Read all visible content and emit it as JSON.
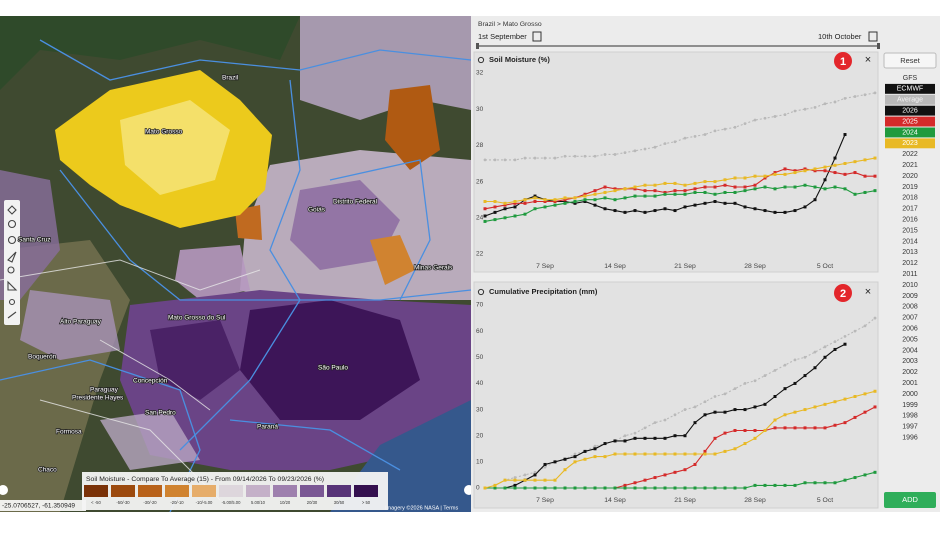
{
  "breadcrumb": "Brazil > Mato Grosso",
  "date_range": {
    "start": "1st September",
    "end": "10th October"
  },
  "buttons": {
    "reset": "Reset",
    "add": "ADD"
  },
  "badges": [
    "1",
    "2"
  ],
  "close": "×",
  "data_sources": [
    "GFS",
    "ECMWF"
  ],
  "other_years": [
    "2022",
    "2021",
    "2020",
    "2019",
    "2018",
    "2017",
    "2016",
    "2015",
    "2014",
    "2013",
    "2012",
    "2011",
    "2010",
    "2009",
    "2008",
    "2007",
    "2006",
    "2005",
    "2004",
    "2003",
    "2002",
    "2001",
    "2000",
    "1999",
    "1998",
    "1997",
    "1996"
  ],
  "map": {
    "labels": [
      "Brazil",
      "Mato Grosso",
      "Goiás",
      "Distrito Federal",
      "Minas Gerais",
      "Mato Grosso do Sul",
      "São Paulo",
      "Paraná",
      "Paraguay",
      "Alto Paraguay",
      "Boquerón",
      "Presidente Hayes",
      "Concepción",
      "San Pedro",
      "Formosa",
      "Chaco",
      "Santa Cruz"
    ],
    "coordinates": "-25.0706527, -61.350949",
    "attribution": "Imagery ©2026 NASA | Terms",
    "legend": {
      "title": "Soil Moisture - Compare To Average (15) - From 09/14/2026 To 09/23/2026 (%)",
      "labels": [
        "< -50",
        "-50/-30",
        "-30/-20",
        "-20/-10",
        "-10/-5.00",
        "-5.00/5.00",
        "5.00/10",
        "10/20",
        "20/30",
        "30/50",
        "> 50"
      ],
      "colors": [
        "#7a3208",
        "#9c4a0e",
        "#b8621a",
        "#d08330",
        "#e6ad6a",
        "#ddd6dc",
        "#c4b0c8",
        "#9e80ae",
        "#7a5894",
        "#583478",
        "#34104f"
      ]
    }
  },
  "chart_data": [
    {
      "type": "line",
      "title": "Soil Moisture (%)",
      "categories": [
        null,
        null,
        null,
        null,
        null,
        null,
        "7 Sep",
        null,
        null,
        null,
        null,
        null,
        null,
        "14 Sep",
        null,
        null,
        null,
        null,
        null,
        null,
        "21 Sep",
        null,
        null,
        null,
        null,
        null,
        null,
        "28 Sep",
        null,
        null,
        null,
        null,
        null,
        null,
        "5 Oct",
        null,
        null,
        null,
        null,
        null
      ],
      "ylim": [
        22,
        32
      ],
      "yticks": [
        22,
        24,
        26,
        28,
        30,
        32
      ],
      "grid": false,
      "series": [
        {
          "name": "Average",
          "color": "#b9b9b9",
          "dashed": true,
          "values": [
            27.2,
            27.2,
            27.2,
            27.2,
            27.3,
            27.3,
            27.3,
            27.3,
            27.4,
            27.4,
            27.4,
            27.4,
            27.5,
            27.5,
            27.6,
            27.7,
            27.8,
            27.9,
            28.1,
            28.2,
            28.4,
            28.5,
            28.6,
            28.8,
            28.9,
            29.0,
            29.2,
            29.4,
            29.5,
            29.6,
            29.7,
            29.9,
            30.0,
            30.1,
            30.3,
            30.4,
            30.6,
            30.7,
            30.8,
            30.9
          ]
        },
        {
          "name": "2026",
          "color": "#111111",
          "dashed": false,
          "values": [
            24.1,
            24.3,
            24.5,
            24.6,
            25.0,
            25.2,
            25.0,
            24.9,
            24.9,
            24.8,
            24.9,
            24.7,
            24.5,
            24.4,
            24.3,
            24.4,
            24.3,
            24.4,
            24.5,
            24.4,
            24.6,
            24.7,
            24.8,
            24.9,
            24.8,
            24.8,
            24.6,
            24.5,
            24.4,
            24.3,
            24.3,
            24.4,
            24.6,
            25.0,
            26.1,
            27.3,
            28.6,
            null,
            null,
            null
          ]
        },
        {
          "name": "2025",
          "color": "#d42a2a",
          "dashed": false,
          "values": [
            24.5,
            24.6,
            24.7,
            24.8,
            24.8,
            24.9,
            24.9,
            24.9,
            25.0,
            25.1,
            25.3,
            25.5,
            25.7,
            25.6,
            25.6,
            25.6,
            25.5,
            25.5,
            25.4,
            25.5,
            25.5,
            25.6,
            25.7,
            25.7,
            25.8,
            25.7,
            25.7,
            25.8,
            26.2,
            26.5,
            26.7,
            26.6,
            26.7,
            26.6,
            26.6,
            26.5,
            26.4,
            26.5,
            26.3,
            26.3
          ]
        },
        {
          "name": "2024",
          "color": "#1f9a3e",
          "dashed": false,
          "values": [
            23.8,
            23.9,
            24.0,
            24.1,
            24.2,
            24.5,
            24.6,
            24.7,
            24.8,
            24.9,
            25.0,
            25.0,
            25.1,
            25.0,
            25.1,
            25.2,
            25.2,
            25.2,
            25.3,
            25.3,
            25.3,
            25.4,
            25.4,
            25.3,
            25.4,
            25.4,
            25.5,
            25.6,
            25.7,
            25.6,
            25.7,
            25.7,
            25.8,
            25.7,
            25.6,
            25.7,
            25.6,
            25.3,
            25.4,
            25.5
          ]
        },
        {
          "name": "2023",
          "color": "#e8b925",
          "dashed": false,
          "values": [
            24.9,
            24.9,
            24.8,
            24.9,
            25.0,
            25.1,
            25.0,
            25.0,
            25.1,
            25.1,
            25.2,
            25.3,
            25.4,
            25.5,
            25.6,
            25.7,
            25.8,
            25.8,
            25.9,
            25.9,
            25.8,
            25.9,
            26.0,
            26.0,
            26.1,
            26.2,
            26.2,
            26.3,
            26.3,
            26.4,
            26.4,
            26.5,
            26.6,
            26.7,
            26.8,
            26.9,
            27.0,
            27.1,
            27.2,
            27.3
          ]
        }
      ]
    },
    {
      "type": "line",
      "title": "Cumulative Precipitation (mm)",
      "categories": [
        null,
        null,
        null,
        null,
        null,
        null,
        "7 Sep",
        null,
        null,
        null,
        null,
        null,
        null,
        "14 Sep",
        null,
        null,
        null,
        null,
        null,
        null,
        "21 Sep",
        null,
        null,
        null,
        null,
        null,
        null,
        "28 Sep",
        null,
        null,
        null,
        null,
        null,
        null,
        "5 Oct",
        null,
        null,
        null,
        null,
        null
      ],
      "ylim": [
        0,
        70
      ],
      "yticks": [
        0,
        10,
        20,
        30,
        40,
        50,
        60,
        70
      ],
      "grid": false,
      "series": [
        {
          "name": "Average",
          "color": "#b9b9b9",
          "dashed": true,
          "values": [
            0,
            1,
            3,
            4,
            5,
            6,
            8,
            10,
            11,
            13,
            14,
            16,
            17,
            18,
            20,
            21,
            23,
            25,
            26,
            28,
            30,
            31,
            33,
            35,
            36,
            38,
            40,
            41,
            43,
            45,
            47,
            49,
            50,
            52,
            54,
            56,
            58,
            60,
            62,
            65
          ]
        },
        {
          "name": "2026",
          "color": "#111111",
          "dashed": false,
          "values": [
            0,
            0,
            0,
            1,
            3,
            5,
            9,
            10,
            11,
            12,
            14,
            15,
            17,
            18,
            18,
            19,
            19,
            19,
            19,
            20,
            20,
            25,
            28,
            29,
            29,
            30,
            30,
            31,
            32,
            35,
            38,
            40,
            43,
            46,
            50,
            53,
            55,
            null,
            null,
            null
          ]
        },
        {
          "name": "2025",
          "color": "#d42a2a",
          "dashed": false,
          "values": [
            0,
            0,
            0,
            0,
            0,
            0,
            0,
            0,
            0,
            0,
            0,
            0,
            0,
            0,
            1,
            2,
            3,
            4,
            5,
            6,
            7,
            9,
            14,
            19,
            21,
            22,
            22,
            22,
            22,
            23,
            23,
            23,
            23,
            23,
            23,
            24,
            25,
            27,
            29,
            31
          ]
        },
        {
          "name": "2024",
          "color": "#1f9a3e",
          "dashed": false,
          "values": [
            0,
            0,
            0,
            0,
            0,
            0,
            0,
            0,
            0,
            0,
            0,
            0,
            0,
            0,
            0,
            0,
            0,
            0,
            0,
            0,
            0,
            0,
            0,
            0,
            0,
            0,
            0,
            1,
            1,
            1,
            1,
            1,
            2,
            2,
            2,
            2,
            3,
            4,
            5,
            6
          ]
        },
        {
          "name": "2023",
          "color": "#e8b925",
          "dashed": false,
          "values": [
            0,
            1,
            3,
            3,
            3,
            3,
            3,
            3,
            7,
            10,
            11,
            12,
            12,
            13,
            13,
            13,
            13,
            13,
            13,
            13,
            13,
            13,
            13,
            13,
            14,
            15,
            17,
            19,
            22,
            26,
            28,
            29,
            30,
            31,
            32,
            33,
            34,
            35,
            36,
            37
          ]
        }
      ]
    }
  ]
}
